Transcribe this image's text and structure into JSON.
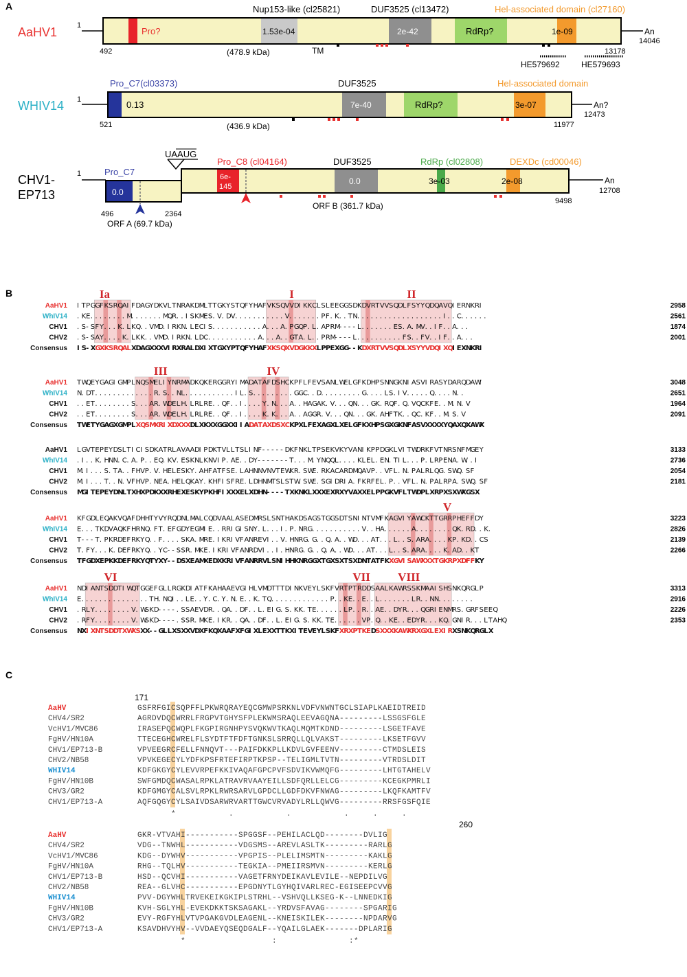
{
  "panel_a": {
    "label": "A",
    "genomes": [
      {
        "name": "AaHV1",
        "name_color": "#e8312f",
        "five_prime": "1",
        "start": "492",
        "end": "13178",
        "three_prime": "An",
        "three_prime_pos": "14046",
        "mass": "(478.9 kDa)",
        "domains": [
          {
            "label": "Pro?",
            "color": "#e8242a",
            "text_color": "#e8312f"
          },
          {
            "label": "1.53e-04",
            "color": "#c9c9c9",
            "header": "Nup153-like (cl25821)"
          },
          {
            "label": "2e-42",
            "color": "#8f8f8f",
            "header": "DUF3525 (cl13472)"
          },
          {
            "label": "RdRp?",
            "color": "#9ed66a"
          },
          {
            "label": "1e-09",
            "color": "#f39a2d",
            "header": "Hel-associated domain (cl27160)",
            "header_color": "#f39a2d"
          }
        ],
        "tm_label": "TM",
        "hits": [
          "HE579692",
          "HE579693"
        ]
      },
      {
        "name": "WHIV14",
        "name_color": "#2bb0c6",
        "five_prime": "1",
        "start": "521",
        "end": "11977",
        "three_prime": "An?",
        "three_prime_pos": "12473",
        "mass": "(436.9 kDa)",
        "domains": [
          {
            "label": "0.13",
            "color": "#25349b",
            "header": "Pro_C7(cl03373)",
            "header_color": "#3a43a6"
          },
          {
            "label": "7e-40",
            "color": "#8f8f8f",
            "header": "DUF3525"
          },
          {
            "label": "RdRp?",
            "color": "#9ed66a"
          },
          {
            "label": "3e-07",
            "color": "#f39a2d",
            "header": "Hel-associated domain",
            "header_color": "#f39a2d"
          }
        ]
      },
      {
        "name": "CHV1-\nEP713",
        "name_line1": "CHV1-",
        "name_line2": "EP713",
        "name_color": "#111",
        "five_prime": "1",
        "start_a": "496",
        "end_a": "2364",
        "end_b": "9498",
        "three_prime": "An",
        "three_prime_pos": "12708",
        "uaaug": "UAAUG",
        "orf_a": "ORF A (69.7 kDa)",
        "orf_b": "ORF B (361.7 kDa)",
        "domains": [
          {
            "label": "0.0",
            "color": "#25349b",
            "header": "Pro_C7",
            "header_color": "#3a43a6"
          },
          {
            "label": "6e-\n145",
            "label_line1": "6e-",
            "label_line2": "145",
            "color": "#e8242a",
            "header": "Pro_C8 (cl04164)",
            "header_color": "#e8242a"
          },
          {
            "label": "0.0",
            "color": "#8f8f8f",
            "header": "DUF3525"
          },
          {
            "label": "3e-03",
            "color": "#4aa94a",
            "header": "RdRp (cl02808)",
            "header_color": "#4aa94a"
          },
          {
            "label": "2e-08",
            "color": "#f39a2d",
            "header": "DEXDc (cd00046)",
            "header_color": "#f39a2d"
          }
        ]
      }
    ]
  },
  "panel_b": {
    "label": "B",
    "motifs": [
      "Ia",
      "I",
      "II",
      "III",
      "IV",
      "V",
      "VI",
      "VII",
      "VIII"
    ],
    "blocks": [
      {
        "rows": [
          {
            "name": "AaHV1",
            "seq": "I T P G G F K S R Q A I F D A G Y D K V L T N R A K D M L T T G K Y S T Q F Y H A F V K S Q V V D I K K C L S L E E G G S D K D V R T V V S Q D L F S Y Y Q D Q A V Q I E R N K R I",
            "end": "2958"
          },
          {
            "name": "WhIV14",
            "seq": ". K E . . . . . . . . M . . . . . . . M Q R . . I S K M E S . V . D V . . . . . . . . . . . V . . . . . . . P F . K . . T N . . . . . . . . . . . . . . . . . . . I . . C . . . . . .",
            "end": "2561"
          },
          {
            "name": "CHV1",
            "seq": ". S - S F Y . . . K . L K Q . . V M D . I R K N . L E C I S . . . . . . . . . . . A . . . A . P G Q P . L . A P R M - - - - L . . . . . . . E S . A . M V . . I F . . A . . .",
            "end": "1874"
          },
          {
            "name": "CHV2",
            "seq": ". S - S A Y . . . . K . L K K . . V M D . I R K N . L D C . . . . . . . . . . . A . . . A . . G T A . L . . P R M - - - - L . . . . . . . . . . F S . . F V . . I F . . A . . .",
            "end": "2001"
          },
          {
            "name": "Consensus",
            "seq": "I S - X G X K S R Q A L X D A G X X X V I R X R A L D X I X T G X Y P T Q F Y H A F X K S Q X V D G K K X L P P E X G G - - K D X R T V V S Q D L X S Y Y V D Q I X Q I E X N K R I",
            "end": ""
          }
        ]
      },
      {
        "rows": [
          {
            "name": "AaHV1",
            "seq": "T W Q E Y G A G I G M P L N Q S M E L I Y N R M A D K Q K E R G G R Y I M A D A T A F D S H C K P F L F E V S A N L W E L G F K D H P S N N G K N I A S V I R A S Y D A R Q D A W I",
            "end": "3048"
          },
          {
            "name": "WhIV14",
            "seq": "N . D T . . . . . . . . . . . . . R . S . . N L . . . . . . . . . . . I L . S . . . . . . . . . G G C . . D . . . . . . . . . G . . . . L S . I V . . . . . Q . . . . N . .",
            "end": "2651"
          },
          {
            "name": "CHV1",
            "seq": ". . E T . . . . . . . . S . . . A R . W D E L H . L R L R E . . Q F . . I . . . . Y . N . . . A . . H A G A K . V . . . Q N . . . G K . R Q F . Q . V Q C K F E . . M . N . V",
            "end": "1964"
          },
          {
            "name": "CHV2",
            "seq": ". . E T . . . . . . . . S . . . A R . W D E L H . L R L R E . . Q F . . I . . . . K . K . . . A . . A G G R . V . . . Q N . . . G K . A H F T K . . Q C . K F . . M . S . V",
            "end": "2091"
          },
          {
            "name": "Consensus",
            "seq": "T W E T Y G A G X G M P L X Q S M X R I X D X X X D L X K X X G G X X I I A D A T A X D S X C K P X L F E X A G X L X E L G F K X H P S G X G K N F A S V X X X X Y Q A X Q X A W X",
            "end": ""
          }
        ]
      },
      {
        "rows": [
          {
            "name": "AaHV1",
            "seq": "L G V T E P E Y D S L T I C I S D K A T R L A V A A D I P D K T V L L T S L I N F - - - - - D K F N K L T P S E K V K Y V A N I K P P D G K L V I T W D R K F V T N R S N F M G E Y",
            "end": "3133"
          },
          {
            "name": "WhIV14",
            "seq": ". I . . K . H N N . C . A . P . . E Q . K V . E S K N L K N V I P . A E . . D Y - - - - - - - T . . . M . Y N Q Q L . . . . K L E L . E N . T I L . . . P . L R P E N A . W . . I",
            "end": "2736"
          },
          {
            "name": "CHV1",
            "seq": "M . I . . . S . T A . . F H V P . V . H E L E S K Y . A H F A T F S E . L A H N N V N V T E W K R . S W E . R K A C A R D M Q A V P . . V F L . N . P A L R L Q G . S W Q . S F",
            "end": "2054"
          },
          {
            "name": "CHV2",
            "seq": "M . I . . . T . . N . V F H V P . N E A . H E L Q K A Y . K H F I S F R E . L D H N M T S L S T W . S W E . S G I D R I A . F K R F E L . P . . V F L . N . P A L R P A . S W Q . S F",
            "end": "2181"
          },
          {
            "name": "Consensus",
            "seq": "M G I T E P E Y D N L T X H X P D K X X R H E X E S K Y P K H F I X X X E L X D H N - - - - T X K N K L X X X E X R X Y V A X X E L P P G K V F L T W D P L X R P X S X W X G S X",
            "end": ""
          }
        ]
      },
      {
        "rows": [
          {
            "name": "AaHV1",
            "seq": "K F G D L E Q A K V Q A F D H H T Y V Y R Q D N L M A L C Q D V A A L A S E D M R S L S N T H A K D S A G S T G G S D T S N I N T V M F K A G V I Y A W C K T T G R R P H E F F D Y",
            "end": "3223"
          },
          {
            "name": "WhIV14",
            "seq": "E . . . T K D V A Q K F H R N Q . F T . E F G D Y E G M I E . . R R I G I S N Y . L . . . I . P . N R G . . . . . . . . . . . V . . H A . . . . . . A . . . . . . . . Q K . R D . . K .",
            "end": "2826"
          },
          {
            "name": "CHV1",
            "seq": "T - - - T . P K R D E F R K Y Q . . F . . . . S K A . M R E . I K R I V F A N R E V I . . V . H N R G . G . . Q . A . . W D . . . A T . . . L . . S . A R A . . . . K P . K D . . C S",
            "end": "2139"
          },
          {
            "name": "CHV2",
            "seq": "T . F Y . . . K . D E F R K Y Q . . Y C - - S S R . M K E . I K R I V F A N R D V I . . I . H N R G . G . . Q . A . . W D . . . A T . . . L . . S . A R A . . . . K . A D . . K T",
            "end": "2266"
          },
          {
            "name": "Consensus",
            "seq": "T F G D X E P K K D E F R K Y Q T Y X Y - - D S X E A M X E D X K R I V F A N R R V L S N I H H K N R G G X T G X S X T S X D N T A T F K X G V I S A W X X X T G K R P X D F F K Y",
            "end": ""
          }
        ]
      },
      {
        "rows": [
          {
            "name": "AaHV1",
            "seq": "N D I A N T S D D T I W Q T G G E F G L L R G K D I A T F K A H A A E V G I H L V M D T T T D I N K V E Y L S K F V R T P T R D D S A A L K A W R S S K M A A I S H S N K Q R G L P",
            "end": "3313"
          },
          {
            "name": "WhIV14",
            "seq": "E . . . . . . . . . . . . . . . T H . N Q I . . L E . . Y . C . Y . N . E . . K . T Q . . . . . . . . . . . . . P . . K E . . E . . L . . . . . . . L R . . N N . . . . . . . .",
            "end": "2916"
          },
          {
            "name": "CHV1",
            "seq": ". R L Y . . . . . . . . V . W S K D - - - - . S S A E V D R . . Q A . . D F . . L . E I G . S . K K . T E . . . . . . L P . . R . . A E . . D Y R . . . Q G R I E N M R S . G R F S E E Q",
            "end": "2226"
          },
          {
            "name": "CHV2",
            "seq": ". R F Y . . . . . . . . V . W S K D - - - - . S S R . M K E . I K R . . Q A . . D F . . L . E I G . S . K K . T E . . . . . . V P . Q . . K E . . E D Y R . . . K Q . G N I R . . . L T A H Q",
            "end": "2353"
          },
          {
            "name": "Consensus",
            "seq": "N X I X N T S D D T X W X S X X - - G L L X S X X V D X F K Q X A A F X F G I X L E X X T T K X I T E V E Y L S K F X R X P T K E D S X X X K A W X R X G X L E X I R X S N K Q R G L X",
            "end": ""
          }
        ]
      }
    ]
  },
  "panel_c": {
    "label": "C",
    "pos_start": "171",
    "pos_end": "260",
    "block1": [
      {
        "name": "AaHV",
        "seq": "GSFRFGICSQPFFLPKWRQRAYEQCGMWPSRKNLVDFVNWNTGCLSIAPLKAEIDTREID",
        "highlight": true,
        "color": "#e8312f"
      },
      {
        "name": "CHV4/SR2",
        "seq": "AGRDVDQCWRRLFRGPVTGHYSFPLEKWMSRAQLEEVAGQNA---------LSSGSFGLE"
      },
      {
        "name": "VcHV1/MVC86",
        "seq": "IRASEPQCWQPLFKGPIRGNHPYSVQKWVTKAQLMQMTKDND---------LSGETFAVE"
      },
      {
        "name": "FgHV/HN10A",
        "seq": "TTECEGHCWRELFLSYDTFTFDFTGNKSLSRRQLLQLVAKST---------LKSETFGVV"
      },
      {
        "name": "CHV1/EP713-B",
        "seq": "VPVEEGRCFELLFNNQVT---PAIFDKKPLLKDVLGVFEENV---------CTMDSLEIS"
      },
      {
        "name": "CHV2/NB58",
        "seq": "VPVKEGECYLYDFKPSFRTEFIRPTKPSP--TELIGMLTVTN---------VTRDSLDIT"
      },
      {
        "name": "WHIV14",
        "seq": "KDFGKGYCYLEVVRPEFKKIVAQAFGPCPVFSDVIKVWMQFG---------LHTGTAHELV",
        "highlight": true,
        "color": "#1b8fd0"
      },
      {
        "name": "FgHV/HN10B",
        "seq": "SWFGMDQCWASALRPKLATRAVRVAAYEILLSDFQRLLELCG---------KCEGKPMRLI"
      },
      {
        "name": "CHV3/GR2",
        "seq": "KDFGMGYCALSVLRPKLRWRSARVLGPDCLLGDFDKVFNWAG---------LKQFKAMTFV"
      },
      {
        "name": "CHV1/EP713-A",
        "seq": "AQFGQGYCYLSAIVDSARWRVARTTGWCVRVADYLRLLQWVG---------RRSFGSFQIE"
      }
    ],
    "cons1": "       *           .           .           .     .     .    ",
    "block2": [
      {
        "name": "AaHV",
        "seq": "GKR-VTVAHI-----------SPGGSF--PEHILACLQD--------DVLIG",
        "highlight": true,
        "color": "#e8312f"
      },
      {
        "name": "CHV4/SR2",
        "seq": "VDG--TNWHL-----------VDGSMS--AREVLASLTK---------RARLG"
      },
      {
        "name": "VcHV1/MVC86",
        "seq": "KDG--DYWHV-----------VPGPIS--PLELIMSMTN---------KAKLG"
      },
      {
        "name": "FgHV/HN10A",
        "seq": "RHG--TQLHV-----------TEGKIA--PMEIIRSMVN---------KERLG"
      },
      {
        "name": "CHV1/EP713-B",
        "seq": "HSD--QCVHI-----------VAGETFRNYDEIKAVLEVILE--NEPDILVG"
      },
      {
        "name": "CHV2/NB58",
        "seq": "REA--GLVHC-----------EPGDNYTLGYHQIVARLREC-EGISEEPCVVG"
      },
      {
        "name": "WHIV14",
        "seq": "PVV-DGYWHLTRVEKEIKGKIPLSTRHL--VSHVQLLKSEG-K--LNNEDKIG",
        "highlight": true,
        "color": "#1b8fd0"
      },
      {
        "name": "FgHV/HN10B",
        "seq": "KVH-SGLYHL-EVEKDKKTSKSAGAKL--YRDVSFAVAG--------SPGARIG"
      },
      {
        "name": "CHV3/GR2",
        "seq": "EVY-RGFYHLVTVPGAKGVDLEAGENL--KNEISKILEK--------NPDARVG"
      },
      {
        "name": "CHV1/EP713-A",
        "seq": "KSAVDHVYHV--VVDAEYQSEQDGALF--YQAILGLAEK-------DPLARIG"
      }
    ],
    "cons2": "         *                  :               :*"
  }
}
